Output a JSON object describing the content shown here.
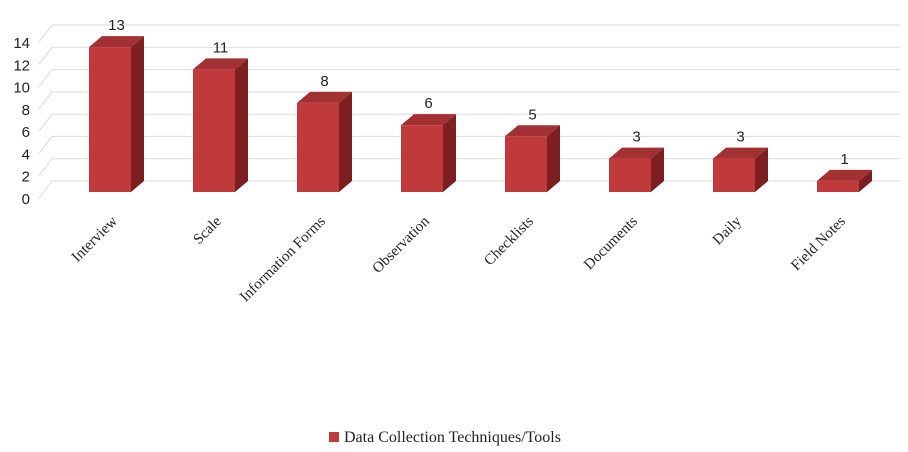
{
  "chart_data": {
    "type": "bar",
    "categories": [
      "Interview",
      "Scale",
      "Information Forms",
      "Observation",
      "Checklists",
      "Documents",
      "Daily",
      "Field Notes"
    ],
    "series": [
      {
        "name": "Data Collection Techniques/Tools",
        "values": [
          13,
          11,
          8,
          6,
          5,
          3,
          3,
          1
        ],
        "color": "#c0393b"
      }
    ],
    "yticks": [
      0,
      2,
      4,
      6,
      8,
      10,
      12,
      14
    ],
    "ylim": [
      0,
      14
    ],
    "grid": true,
    "style": "3d-column",
    "legend_position": "bottom"
  }
}
